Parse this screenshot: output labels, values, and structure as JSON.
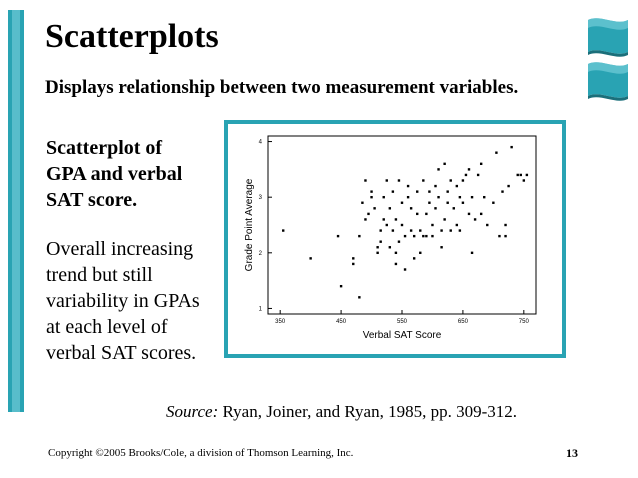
{
  "slide": {
    "title": "Scatterplots",
    "subtitle": "Displays relationship between two measurement variables.",
    "desc_bold": [
      "Scatterplot of",
      "GPA and verbal",
      "SAT score."
    ],
    "desc_plain": [
      "Overall increasing",
      "trend but still",
      "variability in GPAs",
      "at each level of",
      "verbal SAT scores."
    ],
    "source_label": "Source:",
    "source_text": "Ryan, Joiner, and Ryan, 1985, pp. 309-312.",
    "footer": "Copyright ©2005 Brooks/Cole, a division of Thomson Learning, Inc.",
    "page_number": "13"
  },
  "colors": {
    "accent": "#29a3b3",
    "accent_light": "#7fd3de"
  },
  "icons": {
    "ribbon": "teal-ribbon-ornament"
  },
  "chart_data": {
    "type": "scatter",
    "title": "",
    "xlabel": "Verbal SAT Score",
    "ylabel": "Grade Point Average",
    "xlim": [
      330,
      770
    ],
    "ylim": [
      0.9,
      4.1
    ],
    "xticks": [
      350,
      450,
      550,
      650,
      750
    ],
    "yticks": [
      1,
      2,
      3,
      4
    ],
    "grid": false,
    "legend": "none",
    "points": [
      [
        355,
        2.4
      ],
      [
        400,
        1.9
      ],
      [
        445,
        2.3
      ],
      [
        450,
        1.4
      ],
      [
        470,
        1.9
      ],
      [
        470,
        1.8
      ],
      [
        480,
        1.2
      ],
      [
        480,
        2.3
      ],
      [
        485,
        2.9
      ],
      [
        490,
        2.6
      ],
      [
        490,
        3.3
      ],
      [
        495,
        2.7
      ],
      [
        500,
        3.0
      ],
      [
        500,
        3.1
      ],
      [
        505,
        2.8
      ],
      [
        510,
        2.1
      ],
      [
        510,
        2.0
      ],
      [
        515,
        2.2
      ],
      [
        515,
        2.4
      ],
      [
        520,
        2.6
      ],
      [
        520,
        3.0
      ],
      [
        525,
        2.5
      ],
      [
        525,
        3.3
      ],
      [
        530,
        2.1
      ],
      [
        530,
        2.8
      ],
      [
        535,
        3.1
      ],
      [
        535,
        2.4
      ],
      [
        540,
        2.6
      ],
      [
        540,
        1.8
      ],
      [
        545,
        2.2
      ],
      [
        545,
        3.3
      ],
      [
        550,
        2.9
      ],
      [
        550,
        2.5
      ],
      [
        555,
        2.3
      ],
      [
        555,
        1.7
      ],
      [
        560,
        3.0
      ],
      [
        560,
        3.2
      ],
      [
        565,
        2.8
      ],
      [
        565,
        2.4
      ],
      [
        570,
        2.3
      ],
      [
        570,
        1.9
      ],
      [
        575,
        3.1
      ],
      [
        575,
        2.7
      ],
      [
        580,
        2.4
      ],
      [
        580,
        2.0
      ],
      [
        585,
        3.3
      ],
      [
        585,
        2.3
      ],
      [
        590,
        2.7
      ],
      [
        590,
        2.3
      ],
      [
        595,
        3.1
      ],
      [
        595,
        2.9
      ],
      [
        600,
        2.5
      ],
      [
        600,
        2.3
      ],
      [
        605,
        3.2
      ],
      [
        605,
        2.8
      ],
      [
        610,
        3.5
      ],
      [
        610,
        3.0
      ],
      [
        615,
        2.4
      ],
      [
        615,
        2.1
      ],
      [
        620,
        3.6
      ],
      [
        620,
        2.6
      ],
      [
        625,
        3.1
      ],
      [
        625,
        2.9
      ],
      [
        630,
        2.4
      ],
      [
        630,
        3.3
      ],
      [
        635,
        2.8
      ],
      [
        640,
        3.2
      ],
      [
        640,
        2.5
      ],
      [
        645,
        3.0
      ],
      [
        645,
        2.4
      ],
      [
        650,
        3.3
      ],
      [
        650,
        2.9
      ],
      [
        655,
        3.4
      ],
      [
        660,
        3.5
      ],
      [
        660,
        2.7
      ],
      [
        665,
        3.0
      ],
      [
        665,
        2.0
      ],
      [
        670,
        2.6
      ],
      [
        675,
        3.4
      ],
      [
        680,
        3.6
      ],
      [
        680,
        2.7
      ],
      [
        685,
        3.0
      ],
      [
        690,
        2.5
      ],
      [
        700,
        2.9
      ],
      [
        705,
        3.8
      ],
      [
        710,
        2.3
      ],
      [
        715,
        3.1
      ],
      [
        720,
        2.5
      ],
      [
        725,
        3.2
      ],
      [
        730,
        3.9
      ],
      [
        740,
        3.4
      ],
      [
        745,
        3.4
      ],
      [
        750,
        3.3
      ],
      [
        755,
        3.4
      ],
      [
        720,
        2.3
      ],
      [
        540,
        2.0
      ]
    ]
  }
}
